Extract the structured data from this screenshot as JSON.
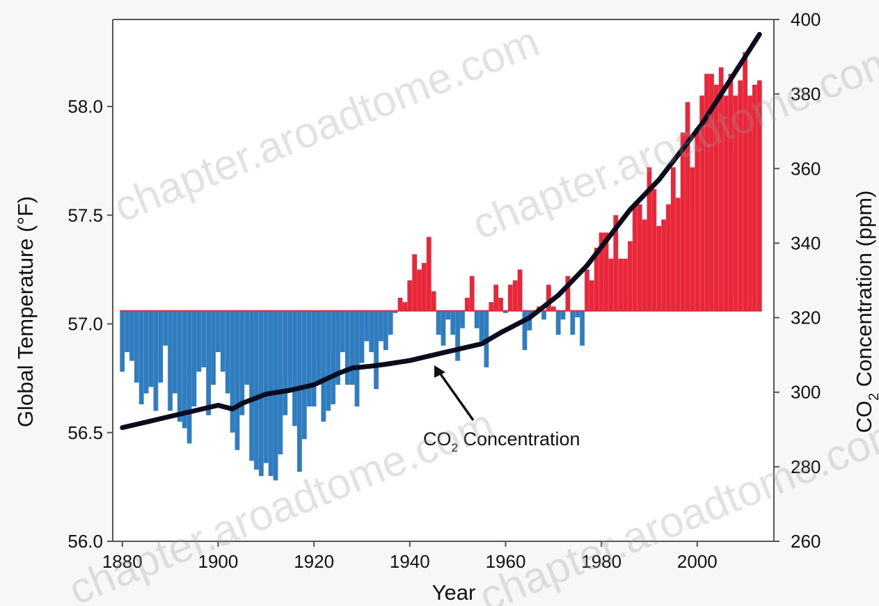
{
  "chart_data": {
    "type": "bar",
    "xlabel": "Year",
    "ylabel_left": "Global Temperature (°F)",
    "ylabel_right": {
      "main": "CO",
      "sub": "2",
      "rest": " Concentration (ppm)"
    },
    "annotation": {
      "main": "CO",
      "sub": "2",
      "rest": " Concentration"
    },
    "baseline": 57.06,
    "x_range": [
      1878,
      2016
    ],
    "y_left_range": [
      56.0,
      58.4
    ],
    "y_right_range": [
      260,
      400
    ],
    "x_ticks": [
      "1880",
      "1900",
      "1920",
      "1940",
      "1960",
      "1980",
      "2000"
    ],
    "y_left_ticks": [
      "56.0",
      "56.5",
      "57.0",
      "57.5",
      "58.0"
    ],
    "y_right_ticks": [
      "260",
      "280",
      "300",
      "320",
      "340",
      "360",
      "380",
      "400"
    ],
    "grid": false,
    "colors": {
      "warm": "#e8283a",
      "cool": "#2f7cbf",
      "line": "#0b0b1e",
      "axis": "#555555"
    },
    "series": [
      {
        "name": "Global Temperature",
        "axis": "left",
        "x": [
          1880,
          1881,
          1882,
          1883,
          1884,
          1885,
          1886,
          1887,
          1888,
          1889,
          1890,
          1891,
          1892,
          1893,
          1894,
          1895,
          1896,
          1897,
          1898,
          1899,
          1900,
          1901,
          1902,
          1903,
          1904,
          1905,
          1906,
          1907,
          1908,
          1909,
          1910,
          1911,
          1912,
          1913,
          1914,
          1915,
          1916,
          1917,
          1918,
          1919,
          1920,
          1921,
          1922,
          1923,
          1924,
          1925,
          1926,
          1927,
          1928,
          1929,
          1930,
          1931,
          1932,
          1933,
          1934,
          1935,
          1936,
          1937,
          1938,
          1939,
          1940,
          1941,
          1942,
          1943,
          1944,
          1945,
          1946,
          1947,
          1948,
          1949,
          1950,
          1951,
          1952,
          1953,
          1954,
          1955,
          1956,
          1957,
          1958,
          1959,
          1960,
          1961,
          1962,
          1963,
          1964,
          1965,
          1966,
          1967,
          1968,
          1969,
          1970,
          1971,
          1972,
          1973,
          1974,
          1975,
          1976,
          1977,
          1978,
          1979,
          1980,
          1981,
          1982,
          1983,
          1984,
          1985,
          1986,
          1987,
          1988,
          1989,
          1990,
          1991,
          1992,
          1993,
          1994,
          1995,
          1996,
          1997,
          1998,
          1999,
          2000,
          2001,
          2002,
          2003,
          2004,
          2005,
          2006,
          2007,
          2008,
          2009,
          2010,
          2011,
          2012,
          2013
        ],
        "values": [
          56.78,
          56.87,
          56.83,
          56.73,
          56.63,
          56.68,
          56.71,
          56.6,
          56.73,
          56.9,
          56.6,
          56.68,
          56.55,
          56.52,
          56.45,
          56.62,
          56.78,
          56.8,
          56.58,
          56.72,
          56.87,
          56.78,
          56.68,
          56.5,
          56.42,
          56.58,
          56.72,
          56.37,
          56.33,
          56.3,
          56.36,
          56.3,
          56.28,
          56.4,
          56.58,
          56.7,
          56.53,
          56.32,
          56.47,
          56.62,
          56.62,
          56.72,
          56.55,
          56.6,
          56.63,
          56.72,
          56.87,
          56.72,
          56.72,
          56.62,
          56.82,
          56.92,
          56.87,
          56.7,
          56.92,
          56.88,
          56.95,
          57.05,
          57.12,
          57.1,
          57.2,
          57.32,
          57.25,
          57.28,
          57.4,
          57.15,
          56.95,
          56.9,
          57.02,
          56.95,
          56.83,
          56.98,
          57.12,
          57.22,
          56.98,
          56.92,
          56.8,
          57.1,
          57.18,
          57.12,
          57.05,
          57.18,
          57.2,
          57.25,
          56.88,
          56.97,
          57.05,
          57.08,
          57.02,
          57.18,
          57.08,
          56.95,
          57.02,
          57.22,
          56.95,
          57.03,
          56.9,
          57.25,
          57.2,
          57.35,
          57.42,
          57.42,
          57.3,
          57.5,
          57.3,
          57.3,
          57.38,
          57.55,
          57.55,
          57.48,
          57.72,
          57.62,
          57.45,
          57.48,
          57.55,
          57.72,
          57.58,
          57.88,
          58.02,
          57.72,
          57.9,
          58.05,
          58.15,
          58.15,
          58.1,
          58.18,
          58.05,
          58.15,
          58.05,
          58.12,
          58.25,
          58.05,
          58.1,
          58.12
        ]
      },
      {
        "name": "CO2 Concentration",
        "axis": "right",
        "x": [
          1880,
          1885,
          1890,
          1895,
          1900,
          1903,
          1905,
          1910,
          1915,
          1920,
          1925,
          1928,
          1932,
          1935,
          1940,
          1945,
          1950,
          1955,
          1959,
          1962,
          1965,
          1968,
          1971,
          1974,
          1977,
          1980,
          1983,
          1986,
          1989,
          1992,
          1995,
          1998,
          2001,
          2004,
          2007,
          2010,
          2013
        ],
        "values": [
          290.5,
          292,
          293.5,
          295,
          296.5,
          295.5,
          297,
          299.5,
          300.5,
          302,
          305,
          306.5,
          307,
          307.5,
          308.5,
          310,
          311.5,
          313,
          316,
          318,
          320,
          323,
          326,
          330,
          334,
          339,
          344,
          349,
          353,
          357,
          362,
          367,
          372,
          378,
          384,
          390,
          396
        ]
      }
    ]
  }
}
